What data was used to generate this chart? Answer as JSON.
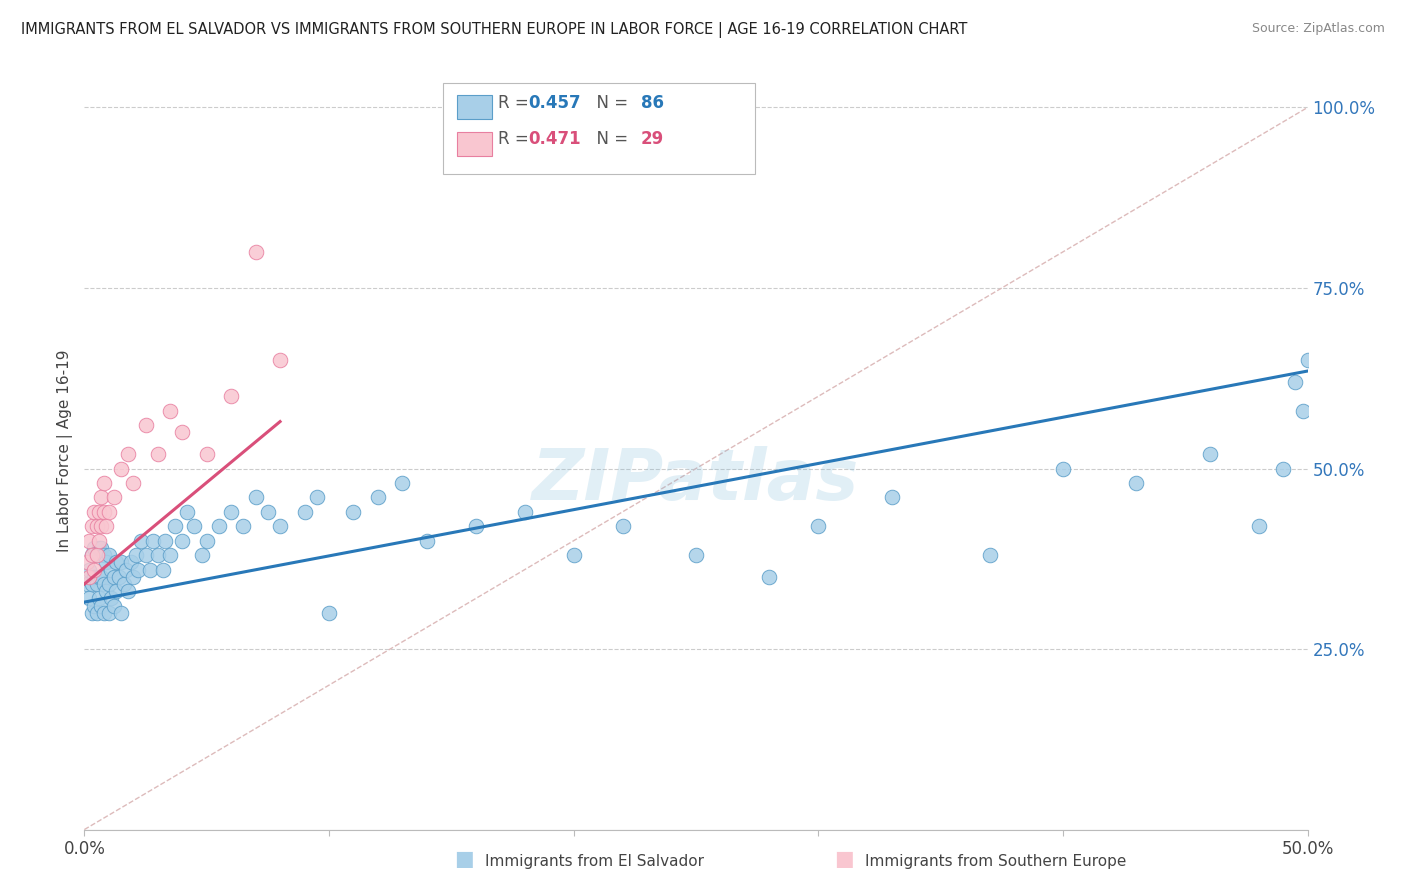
{
  "title": "IMMIGRANTS FROM EL SALVADOR VS IMMIGRANTS FROM SOUTHERN EUROPE IN LABOR FORCE | AGE 16-19 CORRELATION CHART",
  "source": "Source: ZipAtlas.com",
  "ylabel": "In Labor Force | Age 16-19",
  "xlim": [
    0.0,
    0.5
  ],
  "ylim": [
    0.0,
    1.05
  ],
  "R_blue": 0.457,
  "N_blue": 86,
  "R_pink": 0.471,
  "N_pink": 29,
  "color_blue": "#a8cfe8",
  "color_pink": "#f9c6d0",
  "edge_blue": "#5b9ec9",
  "edge_pink": "#e87fa0",
  "trendline_blue": "#2878b8",
  "trendline_pink": "#d94f7a",
  "diagonal_color": "#ddbbbb",
  "watermark": "ZIPatlas",
  "legend_blue": "Immigrants from El Salvador",
  "legend_pink": "Immigrants from Southern Europe",
  "blue_x": [
    0.001,
    0.002,
    0.002,
    0.003,
    0.003,
    0.003,
    0.004,
    0.004,
    0.004,
    0.005,
    0.005,
    0.005,
    0.006,
    0.006,
    0.006,
    0.007,
    0.007,
    0.007,
    0.008,
    0.008,
    0.008,
    0.009,
    0.009,
    0.01,
    0.01,
    0.01,
    0.011,
    0.011,
    0.012,
    0.012,
    0.013,
    0.013,
    0.014,
    0.015,
    0.015,
    0.016,
    0.017,
    0.018,
    0.019,
    0.02,
    0.021,
    0.022,
    0.023,
    0.025,
    0.027,
    0.028,
    0.03,
    0.032,
    0.033,
    0.035,
    0.037,
    0.04,
    0.042,
    0.045,
    0.048,
    0.05,
    0.055,
    0.06,
    0.065,
    0.07,
    0.075,
    0.08,
    0.09,
    0.095,
    0.1,
    0.11,
    0.12,
    0.13,
    0.14,
    0.16,
    0.18,
    0.2,
    0.22,
    0.25,
    0.28,
    0.3,
    0.33,
    0.37,
    0.4,
    0.43,
    0.46,
    0.48,
    0.49,
    0.495,
    0.498,
    0.5
  ],
  "blue_y": [
    0.34,
    0.32,
    0.36,
    0.3,
    0.34,
    0.38,
    0.31,
    0.35,
    0.39,
    0.3,
    0.34,
    0.38,
    0.32,
    0.35,
    0.39,
    0.31,
    0.35,
    0.39,
    0.3,
    0.34,
    0.38,
    0.33,
    0.37,
    0.3,
    0.34,
    0.38,
    0.32,
    0.36,
    0.31,
    0.35,
    0.33,
    0.37,
    0.35,
    0.3,
    0.37,
    0.34,
    0.36,
    0.33,
    0.37,
    0.35,
    0.38,
    0.36,
    0.4,
    0.38,
    0.36,
    0.4,
    0.38,
    0.36,
    0.4,
    0.38,
    0.42,
    0.4,
    0.44,
    0.42,
    0.38,
    0.4,
    0.42,
    0.44,
    0.42,
    0.46,
    0.44,
    0.42,
    0.44,
    0.46,
    0.3,
    0.44,
    0.46,
    0.48,
    0.4,
    0.42,
    0.44,
    0.38,
    0.42,
    0.38,
    0.35,
    0.42,
    0.46,
    0.38,
    0.5,
    0.48,
    0.52,
    0.42,
    0.5,
    0.62,
    0.58,
    0.65
  ],
  "pink_x": [
    0.001,
    0.002,
    0.002,
    0.003,
    0.003,
    0.004,
    0.004,
    0.005,
    0.005,
    0.006,
    0.006,
    0.007,
    0.007,
    0.008,
    0.008,
    0.009,
    0.01,
    0.012,
    0.015,
    0.018,
    0.02,
    0.025,
    0.03,
    0.035,
    0.04,
    0.05,
    0.06,
    0.07,
    0.08
  ],
  "pink_y": [
    0.37,
    0.35,
    0.4,
    0.38,
    0.42,
    0.36,
    0.44,
    0.38,
    0.42,
    0.4,
    0.44,
    0.42,
    0.46,
    0.44,
    0.48,
    0.42,
    0.44,
    0.46,
    0.5,
    0.52,
    0.48,
    0.56,
    0.52,
    0.58,
    0.55,
    0.52,
    0.6,
    0.8,
    0.65
  ],
  "blue_trendline_x0": 0.0,
  "blue_trendline_x1": 0.5,
  "blue_trendline_y0": 0.315,
  "blue_trendline_y1": 0.635,
  "pink_trendline_x0": 0.0,
  "pink_trendline_x1": 0.08,
  "pink_trendline_y0": 0.34,
  "pink_trendline_y1": 0.565
}
